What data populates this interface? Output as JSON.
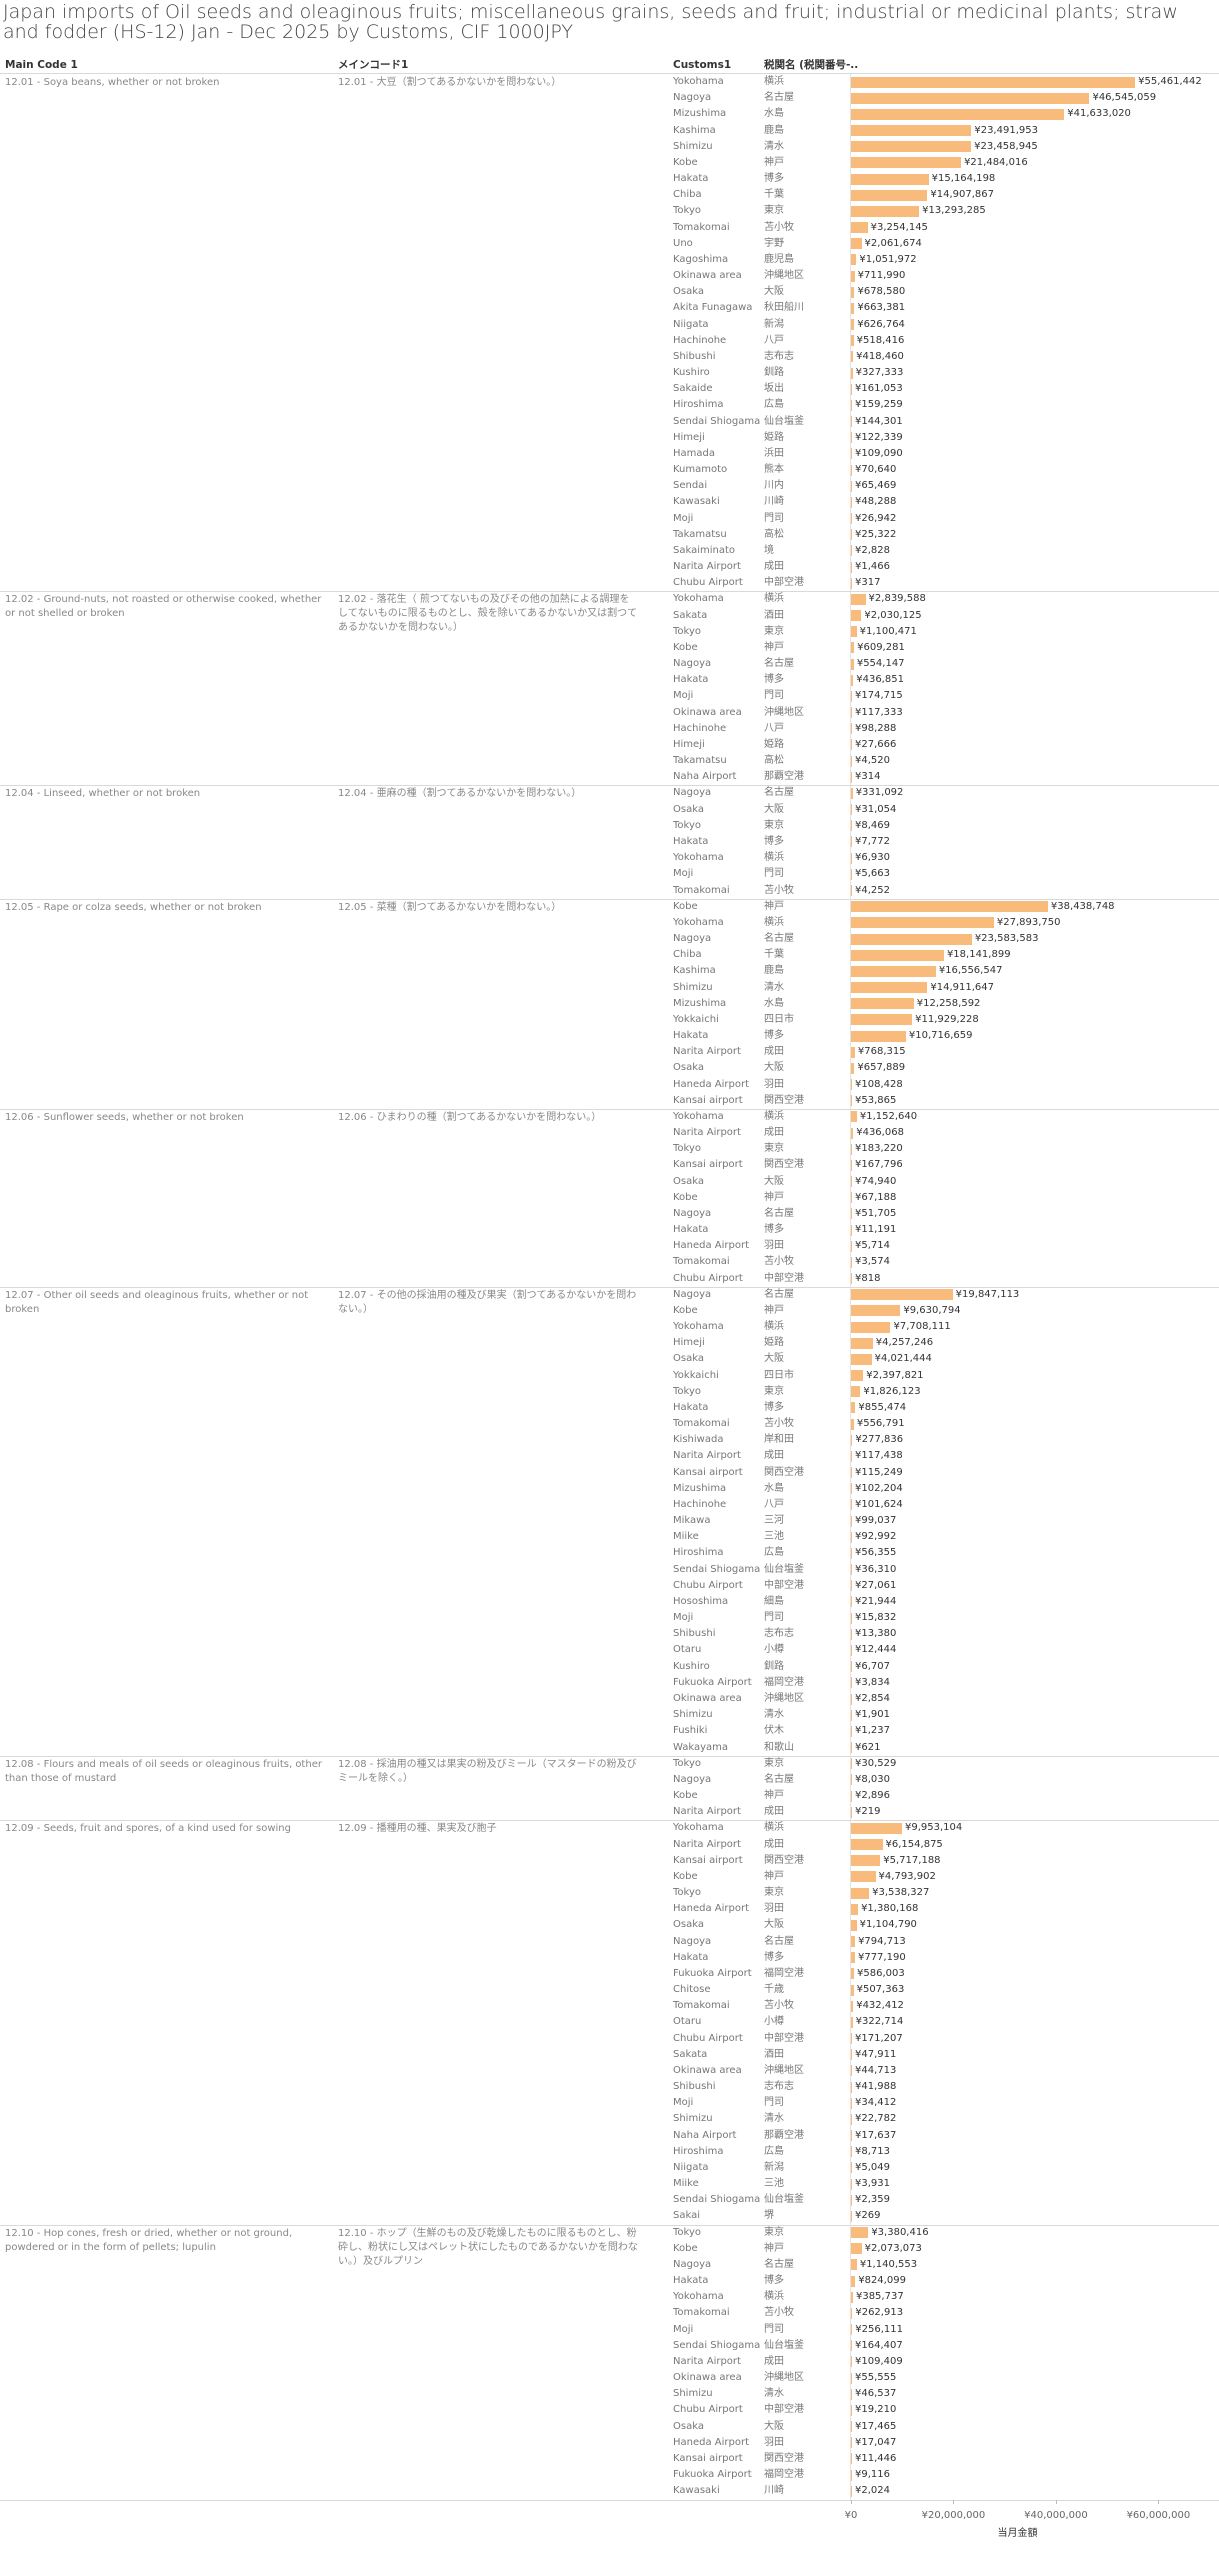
{
  "chart_data": {
    "type": "bar",
    "title": "Japan imports of Oil seeds and oleaginous fruits; miscellaneous grains, seeds and fruit; industrial or medicinal plants; straw and fodder (HS-12) Jan - Dec 2025 by Customs, CIF 1000JPY",
    "headers": [
      "Main Code 1",
      "メインコード1",
      "Customs1",
      "税関名 (税関番号-.."
    ],
    "xlabel": "当月金額",
    "color": "#f8bb7b",
    "xlim": [
      0,
      65000000
    ],
    "xticks": [
      {
        "value": 0,
        "label": "¥0"
      },
      {
        "value": 20000000,
        "label": "¥20,000,000"
      },
      {
        "value": 40000000,
        "label": "¥40,000,000"
      },
      {
        "value": 60000000,
        "label": "¥60,000,000"
      }
    ],
    "groups": [
      {
        "code_en": "12.01 - Soya beans, whether or not broken",
        "code_jp": "12.01 - 大豆（割つてあるかないかを問わない。）",
        "rows": [
          [
            "Yokohama",
            "横浜",
            55461442,
            "¥55,461,442"
          ],
          [
            "Nagoya",
            "名古屋",
            46545059,
            "¥46,545,059"
          ],
          [
            "Mizushima",
            "水島",
            41633020,
            "¥41,633,020"
          ],
          [
            "Kashima",
            "鹿島",
            23491953,
            "¥23,491,953"
          ],
          [
            "Shimizu",
            "清水",
            23458945,
            "¥23,458,945"
          ],
          [
            "Kobe",
            "神戸",
            21484016,
            "¥21,484,016"
          ],
          [
            "Hakata",
            "博多",
            15164198,
            "¥15,164,198"
          ],
          [
            "Chiba",
            "千葉",
            14907867,
            "¥14,907,867"
          ],
          [
            "Tokyo",
            "東京",
            13293285,
            "¥13,293,285"
          ],
          [
            "Tomakomai",
            "苫小牧",
            3254145,
            "¥3,254,145"
          ],
          [
            "Uno",
            "宇野",
            2061674,
            "¥2,061,674"
          ],
          [
            "Kagoshima",
            "鹿児島",
            1051972,
            "¥1,051,972"
          ],
          [
            "Okinawa area",
            "沖縄地区",
            711990,
            "¥711,990"
          ],
          [
            "Osaka",
            "大阪",
            678580,
            "¥678,580"
          ],
          [
            "Akita Funagawa",
            "秋田船川",
            663381,
            "¥663,381"
          ],
          [
            "Niigata",
            "新潟",
            626764,
            "¥626,764"
          ],
          [
            "Hachinohe",
            "八戸",
            518416,
            "¥518,416"
          ],
          [
            "Shibushi",
            "志布志",
            418460,
            "¥418,460"
          ],
          [
            "Kushiro",
            "釧路",
            327333,
            "¥327,333"
          ],
          [
            "Sakaide",
            "坂出",
            161053,
            "¥161,053"
          ],
          [
            "Hiroshima",
            "広島",
            159259,
            "¥159,259"
          ],
          [
            "Sendai Shiogama",
            "仙台塩釜",
            144301,
            "¥144,301"
          ],
          [
            "Himeji",
            "姫路",
            122339,
            "¥122,339"
          ],
          [
            "Hamada",
            "浜田",
            109090,
            "¥109,090"
          ],
          [
            "Kumamoto",
            "熊本",
            70640,
            "¥70,640"
          ],
          [
            "Sendai",
            "川内",
            65469,
            "¥65,469"
          ],
          [
            "Kawasaki",
            "川崎",
            48288,
            "¥48,288"
          ],
          [
            "Moji",
            "門司",
            26942,
            "¥26,942"
          ],
          [
            "Takamatsu",
            "高松",
            25322,
            "¥25,322"
          ],
          [
            "Sakaiminato",
            "境",
            2828,
            "¥2,828"
          ],
          [
            "Narita Airport",
            "成田",
            1466,
            "¥1,466"
          ],
          [
            "Chubu Airport",
            "中部空港",
            317,
            "¥317"
          ]
        ]
      },
      {
        "code_en": "12.02 - Ground-nuts, not roasted or otherwise cooked, whether or not shelled or broken",
        "code_jp": "12.02 - 落花生（ 煎つてないもの及びその他の加熱による調理をしてないものに限るものとし、殻を除いてあるかないか又は割つてあるかないかを問わない。）",
        "rows": [
          [
            "Yokohama",
            "横浜",
            2839588,
            "¥2,839,588"
          ],
          [
            "Sakata",
            "酒田",
            2030125,
            "¥2,030,125"
          ],
          [
            "Tokyo",
            "東京",
            1100471,
            "¥1,100,471"
          ],
          [
            "Kobe",
            "神戸",
            609281,
            "¥609,281"
          ],
          [
            "Nagoya",
            "名古屋",
            554147,
            "¥554,147"
          ],
          [
            "Hakata",
            "博多",
            436851,
            "¥436,851"
          ],
          [
            "Moji",
            "門司",
            174715,
            "¥174,715"
          ],
          [
            "Okinawa area",
            "沖縄地区",
            117333,
            "¥117,333"
          ],
          [
            "Hachinohe",
            "八戸",
            98288,
            "¥98,288"
          ],
          [
            "Himeji",
            "姫路",
            27666,
            "¥27,666"
          ],
          [
            "Takamatsu",
            "高松",
            4520,
            "¥4,520"
          ],
          [
            "Naha Airport",
            "那覇空港",
            314,
            "¥314"
          ]
        ]
      },
      {
        "code_en": "12.04 - Linseed, whether or not broken",
        "code_jp": "12.04 - 亜麻の種（割つてあるかないかを問わない。）",
        "rows": [
          [
            "Nagoya",
            "名古屋",
            331092,
            "¥331,092"
          ],
          [
            "Osaka",
            "大阪",
            31054,
            "¥31,054"
          ],
          [
            "Tokyo",
            "東京",
            8469,
            "¥8,469"
          ],
          [
            "Hakata",
            "博多",
            7772,
            "¥7,772"
          ],
          [
            "Yokohama",
            "横浜",
            6930,
            "¥6,930"
          ],
          [
            "Moji",
            "門司",
            5663,
            "¥5,663"
          ],
          [
            "Tomakomai",
            "苫小牧",
            4252,
            "¥4,252"
          ]
        ]
      },
      {
        "code_en": "12.05 - Rape or colza seeds, whether or not broken",
        "code_jp": "12.05 - 菜種（割つてあるかないかを問わない。）",
        "rows": [
          [
            "Kobe",
            "神戸",
            38438748,
            "¥38,438,748"
          ],
          [
            "Yokohama",
            "横浜",
            27893750,
            "¥27,893,750"
          ],
          [
            "Nagoya",
            "名古屋",
            23583583,
            "¥23,583,583"
          ],
          [
            "Chiba",
            "千葉",
            18141899,
            "¥18,141,899"
          ],
          [
            "Kashima",
            "鹿島",
            16556547,
            "¥16,556,547"
          ],
          [
            "Shimizu",
            "清水",
            14911647,
            "¥14,911,647"
          ],
          [
            "Mizushima",
            "水島",
            12258592,
            "¥12,258,592"
          ],
          [
            "Yokkaichi",
            "四日市",
            11929228,
            "¥11,929,228"
          ],
          [
            "Hakata",
            "博多",
            10716659,
            "¥10,716,659"
          ],
          [
            "Narita Airport",
            "成田",
            768315,
            "¥768,315"
          ],
          [
            "Osaka",
            "大阪",
            657889,
            "¥657,889"
          ],
          [
            "Haneda Airport",
            "羽田",
            108428,
            "¥108,428"
          ],
          [
            "Kansai airport",
            "関西空港",
            53865,
            "¥53,865"
          ]
        ]
      },
      {
        "code_en": "12.06 - Sunflower seeds, whether or not broken",
        "code_jp": "12.06 - ひまわりの種（割つてあるかないかを問わない。）",
        "rows": [
          [
            "Yokohama",
            "横浜",
            1152640,
            "¥1,152,640"
          ],
          [
            "Narita Airport",
            "成田",
            436068,
            "¥436,068"
          ],
          [
            "Tokyo",
            "東京",
            183220,
            "¥183,220"
          ],
          [
            "Kansai airport",
            "関西空港",
            167796,
            "¥167,796"
          ],
          [
            "Osaka",
            "大阪",
            74940,
            "¥74,940"
          ],
          [
            "Kobe",
            "神戸",
            67188,
            "¥67,188"
          ],
          [
            "Nagoya",
            "名古屋",
            51705,
            "¥51,705"
          ],
          [
            "Hakata",
            "博多",
            11191,
            "¥11,191"
          ],
          [
            "Haneda Airport",
            "羽田",
            5714,
            "¥5,714"
          ],
          [
            "Tomakomai",
            "苫小牧",
            3574,
            "¥3,574"
          ],
          [
            "Chubu Airport",
            "中部空港",
            818,
            "¥818"
          ]
        ]
      },
      {
        "code_en": "12.07 - Other oil seeds and oleaginous fruits, whether or not broken",
        "code_jp": "12.07 - その他の採油用の種及び果実（割つてあるかないかを問わない。）",
        "rows": [
          [
            "Nagoya",
            "名古屋",
            19847113,
            "¥19,847,113"
          ],
          [
            "Kobe",
            "神戸",
            9630794,
            "¥9,630,794"
          ],
          [
            "Yokohama",
            "横浜",
            7708111,
            "¥7,708,111"
          ],
          [
            "Himeji",
            "姫路",
            4257246,
            "¥4,257,246"
          ],
          [
            "Osaka",
            "大阪",
            4021444,
            "¥4,021,444"
          ],
          [
            "Yokkaichi",
            "四日市",
            2397821,
            "¥2,397,821"
          ],
          [
            "Tokyo",
            "東京",
            1826123,
            "¥1,826,123"
          ],
          [
            "Hakata",
            "博多",
            855474,
            "¥855,474"
          ],
          [
            "Tomakomai",
            "苫小牧",
            556791,
            "¥556,791"
          ],
          [
            "Kishiwada",
            "岸和田",
            277836,
            "¥277,836"
          ],
          [
            "Narita Airport",
            "成田",
            117438,
            "¥117,438"
          ],
          [
            "Kansai airport",
            "関西空港",
            115249,
            "¥115,249"
          ],
          [
            "Mizushima",
            "水島",
            102204,
            "¥102,204"
          ],
          [
            "Hachinohe",
            "八戸",
            101624,
            "¥101,624"
          ],
          [
            "Mikawa",
            "三河",
            99037,
            "¥99,037"
          ],
          [
            "Miike",
            "三池",
            92992,
            "¥92,992"
          ],
          [
            "Hiroshima",
            "広島",
            56355,
            "¥56,355"
          ],
          [
            "Sendai Shiogama",
            "仙台塩釜",
            36310,
            "¥36,310"
          ],
          [
            "Chubu Airport",
            "中部空港",
            27061,
            "¥27,061"
          ],
          [
            "Hososhima",
            "細島",
            21944,
            "¥21,944"
          ],
          [
            "Moji",
            "門司",
            15832,
            "¥15,832"
          ],
          [
            "Shibushi",
            "志布志",
            13380,
            "¥13,380"
          ],
          [
            "Otaru",
            "小樽",
            12444,
            "¥12,444"
          ],
          [
            "Kushiro",
            "釧路",
            6707,
            "¥6,707"
          ],
          [
            "Fukuoka Airport",
            "福岡空港",
            3834,
            "¥3,834"
          ],
          [
            "Okinawa area",
            "沖縄地区",
            2854,
            "¥2,854"
          ],
          [
            "Shimizu",
            "清水",
            1901,
            "¥1,901"
          ],
          [
            "Fushiki",
            "伏木",
            1237,
            "¥1,237"
          ],
          [
            "Wakayama",
            "和歌山",
            621,
            "¥621"
          ]
        ]
      },
      {
        "code_en": "12.08 - Flours and meals of oil seeds or oleaginous fruits, other than those of mustard",
        "code_jp": "12.08 - 採油用の種又は果実の粉及びミール（マスタードの粉及びミールを除く。）",
        "rows": [
          [
            "Tokyo",
            "東京",
            30529,
            "¥30,529"
          ],
          [
            "Nagoya",
            "名古屋",
            8030,
            "¥8,030"
          ],
          [
            "Kobe",
            "神戸",
            2896,
            "¥2,896"
          ],
          [
            "Narita Airport",
            "成田",
            219,
            "¥219"
          ]
        ]
      },
      {
        "code_en": "12.09 - Seeds, fruit and spores, of a kind used for sowing",
        "code_jp": "12.09 - 播種用の種、果実及び胞子",
        "rows": [
          [
            "Yokohama",
            "横浜",
            9953104,
            "¥9,953,104"
          ],
          [
            "Narita Airport",
            "成田",
            6154875,
            "¥6,154,875"
          ],
          [
            "Kansai airport",
            "関西空港",
            5717188,
            "¥5,717,188"
          ],
          [
            "Kobe",
            "神戸",
            4793902,
            "¥4,793,902"
          ],
          [
            "Tokyo",
            "東京",
            3538327,
            "¥3,538,327"
          ],
          [
            "Haneda Airport",
            "羽田",
            1380168,
            "¥1,380,168"
          ],
          [
            "Osaka",
            "大阪",
            1104790,
            "¥1,104,790"
          ],
          [
            "Nagoya",
            "名古屋",
            794713,
            "¥794,713"
          ],
          [
            "Hakata",
            "博多",
            777190,
            "¥777,190"
          ],
          [
            "Fukuoka Airport",
            "福岡空港",
            586003,
            "¥586,003"
          ],
          [
            "Chitose",
            "千歳",
            507363,
            "¥507,363"
          ],
          [
            "Tomakomai",
            "苫小牧",
            432412,
            "¥432,412"
          ],
          [
            "Otaru",
            "小樽",
            322714,
            "¥322,714"
          ],
          [
            "Chubu Airport",
            "中部空港",
            171207,
            "¥171,207"
          ],
          [
            "Sakata",
            "酒田",
            47911,
            "¥47,911"
          ],
          [
            "Okinawa area",
            "沖縄地区",
            44713,
            "¥44,713"
          ],
          [
            "Shibushi",
            "志布志",
            41988,
            "¥41,988"
          ],
          [
            "Moji",
            "門司",
            34412,
            "¥34,412"
          ],
          [
            "Shimizu",
            "清水",
            22782,
            "¥22,782"
          ],
          [
            "Naha Airport",
            "那覇空港",
            17637,
            "¥17,637"
          ],
          [
            "Hiroshima",
            "広島",
            8713,
            "¥8,713"
          ],
          [
            "Niigata",
            "新潟",
            5049,
            "¥5,049"
          ],
          [
            "Miike",
            "三池",
            3931,
            "¥3,931"
          ],
          [
            "Sendai Shiogama",
            "仙台塩釜",
            2359,
            "¥2,359"
          ],
          [
            "Sakai",
            "堺",
            269,
            "¥269"
          ]
        ]
      },
      {
        "code_en": "12.10 - Hop cones, fresh or dried, whether or not ground, powdered or in the form of pellets; lupulin",
        "code_jp": "12.10 - ホップ（生鮮のもの及び乾燥したものに限るものとし、粉砕し、粉状にし又はペレット状にしたものであるかないかを問わない。）及びルプリン",
        "rows": [
          [
            "Tokyo",
            "東京",
            3380416,
            "¥3,380,416"
          ],
          [
            "Kobe",
            "神戸",
            2073073,
            "¥2,073,073"
          ],
          [
            "Nagoya",
            "名古屋",
            1140553,
            "¥1,140,553"
          ],
          [
            "Hakata",
            "博多",
            824099,
            "¥824,099"
          ],
          [
            "Yokohama",
            "横浜",
            385737,
            "¥385,737"
          ],
          [
            "Tomakomai",
            "苫小牧",
            262913,
            "¥262,913"
          ],
          [
            "Moji",
            "門司",
            256111,
            "¥256,111"
          ],
          [
            "Sendai Shiogama",
            "仙台塩釜",
            164407,
            "¥164,407"
          ],
          [
            "Narita Airport",
            "成田",
            109409,
            "¥109,409"
          ],
          [
            "Okinawa area",
            "沖縄地区",
            55555,
            "¥55,555"
          ],
          [
            "Shimizu",
            "清水",
            46537,
            "¥46,537"
          ],
          [
            "Chubu Airport",
            "中部空港",
            19210,
            "¥19,210"
          ],
          [
            "Osaka",
            "大阪",
            17465,
            "¥17,465"
          ],
          [
            "Haneda Airport",
            "羽田",
            17047,
            "¥17,047"
          ],
          [
            "Kansai airport",
            "関西空港",
            11446,
            "¥11,446"
          ],
          [
            "Fukuoka Airport",
            "福岡空港",
            9116,
            "¥9,116"
          ],
          [
            "Kawasaki",
            "川崎",
            2024,
            "¥2,024"
          ]
        ]
      }
    ]
  }
}
